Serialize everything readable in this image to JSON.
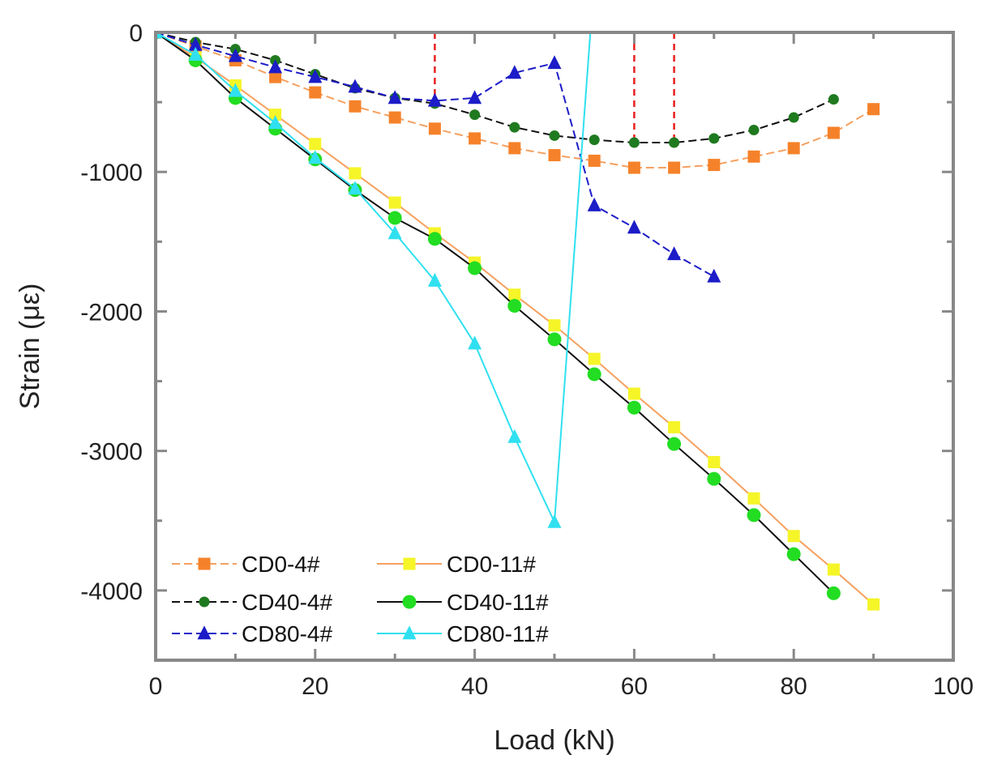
{
  "chart_data": {
    "type": "line",
    "xlabel": "Load (kN)",
    "ylabel": "Strain (με)",
    "xlim": [
      0,
      100
    ],
    "ylim": [
      -4500,
      0
    ],
    "xticks": [
      0,
      20,
      40,
      60,
      80,
      100
    ],
    "yticks": [
      0,
      -1000,
      -2000,
      -3000,
      -4000
    ],
    "x_tick_labels": [
      "0",
      "20",
      "40",
      "60",
      "80",
      "100"
    ],
    "y_tick_labels": [
      "0",
      "-1000",
      "-2000",
      "-3000",
      "-4000"
    ],
    "legend_placement": "bottom-left",
    "grid": false,
    "reference_lines": [
      35,
      60,
      65
    ],
    "series": [
      {
        "name": "CD0-4#",
        "marker": "square",
        "color": "#f5822a",
        "line_color": "#f5a060",
        "dashed": true,
        "x": [
          0,
          5,
          10,
          15,
          20,
          25,
          30,
          35,
          40,
          45,
          50,
          55,
          60,
          65,
          70,
          75,
          80,
          85,
          90
        ],
        "y": [
          0,
          -100,
          -200,
          -320,
          -430,
          -530,
          -610,
          -690,
          -760,
          -830,
          -880,
          -920,
          -970,
          -970,
          -950,
          -890,
          -830,
          -720,
          -550
        ]
      },
      {
        "name": "CD0-11#",
        "marker": "square",
        "color": "#f5f528",
        "line_color": "#f5a060",
        "dashed": false,
        "x": [
          0,
          5,
          10,
          15,
          20,
          25,
          30,
          35,
          40,
          45,
          50,
          55,
          60,
          65,
          70,
          75,
          80,
          85,
          90
        ],
        "y": [
          0,
          -180,
          -380,
          -590,
          -800,
          -1010,
          -1220,
          -1440,
          -1650,
          -1880,
          -2100,
          -2340,
          -2590,
          -2830,
          -3080,
          -3340,
          -3610,
          -3850,
          -4100
        ]
      },
      {
        "name": "CD40-4#",
        "marker": "circle",
        "color": "#1f7a1f",
        "line_color": "#111111",
        "dashed": true,
        "x": [
          0,
          5,
          10,
          15,
          20,
          25,
          30,
          35,
          40,
          45,
          50,
          55,
          60,
          65,
          70,
          75,
          80,
          85
        ],
        "y": [
          0,
          -70,
          -120,
          -200,
          -300,
          -400,
          -470,
          -510,
          -590,
          -680,
          -740,
          -770,
          -790,
          -790,
          -760,
          -700,
          -610,
          -480
        ]
      },
      {
        "name": "CD40-11#",
        "marker": "circle",
        "color": "#22dd22",
        "line_color": "#111111",
        "dashed": false,
        "x": [
          0,
          5,
          10,
          15,
          20,
          25,
          30,
          35,
          40,
          45,
          50,
          55,
          60,
          65,
          70,
          75,
          80,
          85
        ],
        "y": [
          0,
          -200,
          -470,
          -690,
          -910,
          -1130,
          -1330,
          -1480,
          -1690,
          -1960,
          -2200,
          -2450,
          -2690,
          -2950,
          -3200,
          -3460,
          -3740,
          -4020
        ]
      },
      {
        "name": "CD80-4#",
        "marker": "triangle",
        "color": "#1c1cc8",
        "line_color": "#1c1cc8",
        "dashed": true,
        "x": [
          0,
          5,
          10,
          15,
          20,
          25,
          30,
          35,
          40,
          45,
          50,
          55,
          60,
          65,
          70
        ],
        "y": [
          0,
          -90,
          -170,
          -250,
          -320,
          -390,
          -470,
          -490,
          -470,
          -290,
          -220,
          -1240,
          -1400,
          -1590,
          -1750
        ]
      },
      {
        "name": "CD80-11#",
        "marker": "triangle",
        "color": "#30e0f0",
        "line_color": "#30e0f0",
        "dashed": false,
        "x": [
          0,
          5,
          10,
          15,
          20,
          25,
          30,
          35,
          40,
          45,
          50,
          54.5
        ],
        "y": [
          0,
          -160,
          -420,
          -650,
          -900,
          -1120,
          -1440,
          -1780,
          -2230,
          -2900,
          -3510,
          0
        ]
      }
    ]
  }
}
